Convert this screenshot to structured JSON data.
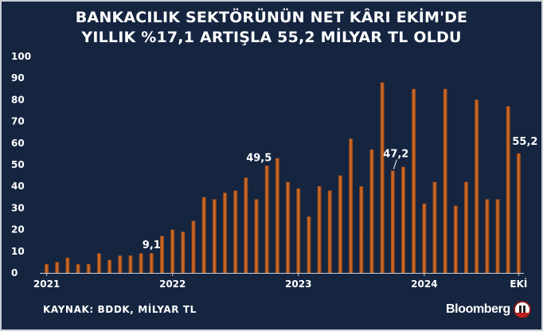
{
  "title_lines": [
    "BANKACILIK SEKTÖRÜNÜN NET KÂRI EKİM'DE",
    "YILLIK %17,1 ARTIŞLA 55,2 MİLYAR TL OLDU"
  ],
  "source": "KAYNAK: BDDK, MİLYAR TL",
  "brand": "Bloomberg",
  "logo_icon": "bloomberg-ht-logo-icon",
  "colors": {
    "background": "#152540",
    "bar": "#d9732e",
    "bar_dark": "#8a3d10",
    "text": "#ffffff"
  },
  "chart_data": {
    "type": "bar",
    "title": "BANKACILIK SEKTÖRÜNÜN NET KÂRI EKİM'DE YILLIK %17,1 ARTIŞLA 55,2 MİLYAR TL OLDU",
    "xlabel": "",
    "ylabel": "",
    "unit": "MİLYAR TL",
    "ylim": [
      0,
      100
    ],
    "yticks": [
      "0",
      "10",
      "20",
      "30",
      "40",
      "50",
      "60",
      "70",
      "80",
      "90",
      "100"
    ],
    "x_tick_labels": [
      {
        "label": "2021",
        "index": 0
      },
      {
        "label": "2022",
        "index": 12
      },
      {
        "label": "2023",
        "index": 24
      },
      {
        "label": "2024",
        "index": 36
      },
      {
        "label": "EKİ",
        "index": 45
      }
    ],
    "grid": false,
    "legend": "none",
    "categories": [
      "2021-01",
      "2021-02",
      "2021-03",
      "2021-04",
      "2021-05",
      "2021-06",
      "2021-07",
      "2021-08",
      "2021-09",
      "2021-10",
      "2021-11",
      "2021-12",
      "2022-01",
      "2022-02",
      "2022-03",
      "2022-04",
      "2022-05",
      "2022-06",
      "2022-07",
      "2022-08",
      "2022-09",
      "2022-10",
      "2022-11",
      "2022-12",
      "2023-01",
      "2023-02",
      "2023-03",
      "2023-04",
      "2023-05",
      "2023-06",
      "2023-07",
      "2023-08",
      "2023-09",
      "2023-10",
      "2023-11",
      "2023-12",
      "2024-01",
      "2024-02",
      "2024-03",
      "2024-04",
      "2024-05",
      "2024-06",
      "2024-07",
      "2024-08",
      "2024-09",
      "2024-10"
    ],
    "values": [
      4,
      5,
      7,
      4,
      4,
      9,
      6,
      8,
      8,
      9,
      9.1,
      17,
      20,
      19,
      24,
      35,
      34,
      37,
      38,
      44,
      34,
      49.5,
      53,
      42,
      39,
      26,
      40,
      38,
      45,
      62,
      40,
      57,
      88,
      47.2,
      49,
      85,
      32,
      42,
      85,
      31,
      42,
      80,
      34,
      34,
      77,
      55.2
    ],
    "data_labels": [
      {
        "index": 10,
        "text": "9,1"
      },
      {
        "index": 21,
        "text": "49,5"
      },
      {
        "index": 33,
        "text": "47,2"
      },
      {
        "index": 45,
        "text": "55,2"
      }
    ]
  }
}
